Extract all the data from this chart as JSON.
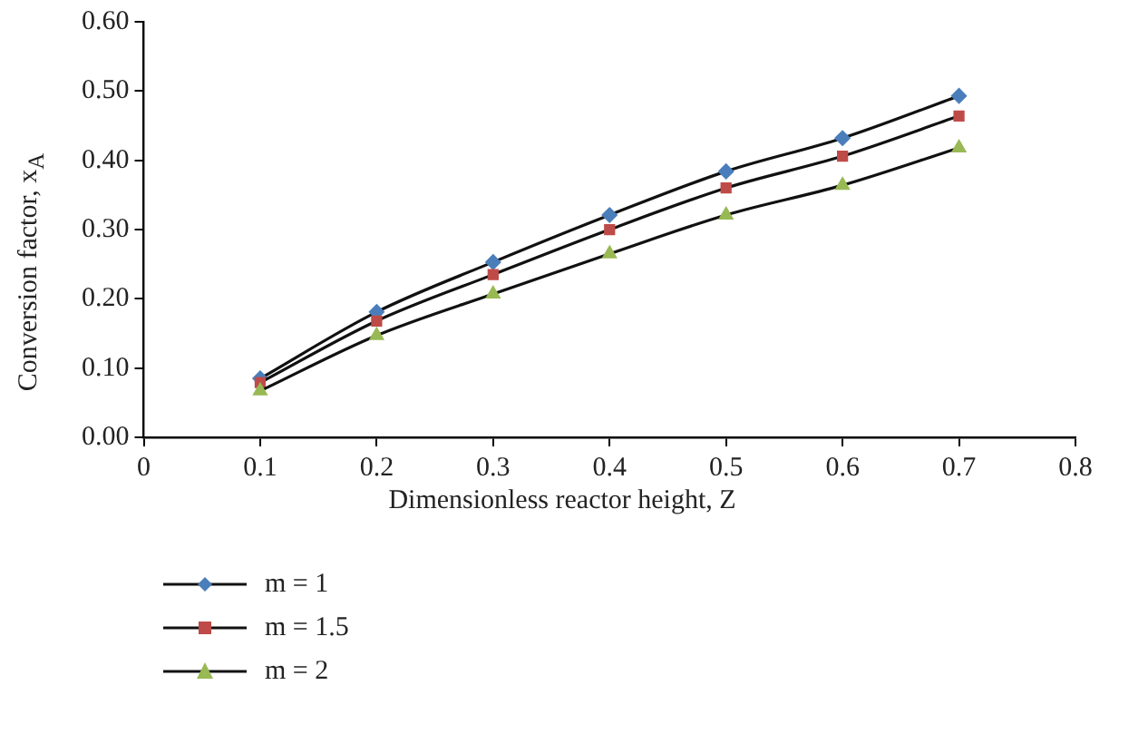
{
  "chart_data": {
    "type": "line",
    "xlabel": "Dimensionless reactor height, Z",
    "ylabel": "Conversion factor, x$_{A}$",
    "x": [
      0.1,
      0.2,
      0.3,
      0.4,
      0.5,
      0.6,
      0.7
    ],
    "series": [
      {
        "name": "m = 1",
        "color": "#4a7ebb",
        "marker": "diamond",
        "values": [
          0.085,
          0.181,
          0.253,
          0.321,
          0.384,
          0.432,
          0.493
        ]
      },
      {
        "name": "m = 1.5",
        "color": "#be4b48",
        "marker": "square",
        "values": [
          0.079,
          0.168,
          0.235,
          0.3,
          0.36,
          0.406,
          0.464
        ]
      },
      {
        "name": "m = 2",
        "color": "#98b954",
        "marker": "triangle",
        "values": [
          0.067,
          0.147,
          0.207,
          0.265,
          0.321,
          0.364,
          0.418
        ]
      }
    ],
    "xlim": [
      0,
      0.8
    ],
    "xticks": [
      0,
      0.1,
      0.2,
      0.3,
      0.4,
      0.5,
      0.6,
      0.7,
      0.8
    ],
    "ylim": [
      0,
      0.6
    ],
    "yticks": [
      {
        "value": 0,
        "label": "0.00"
      },
      {
        "value": 0.1,
        "label": "0.10"
      },
      {
        "value": 0.2,
        "label": "0.20"
      },
      {
        "value": 0.3,
        "label": "0.30"
      },
      {
        "value": 0.4,
        "label": "0.40"
      },
      {
        "value": 0.5,
        "label": "0.50"
      },
      {
        "value": 0.6,
        "label": "0.60"
      }
    ],
    "grid": false,
    "legend": "bottom left",
    "line_style": "solid"
  }
}
